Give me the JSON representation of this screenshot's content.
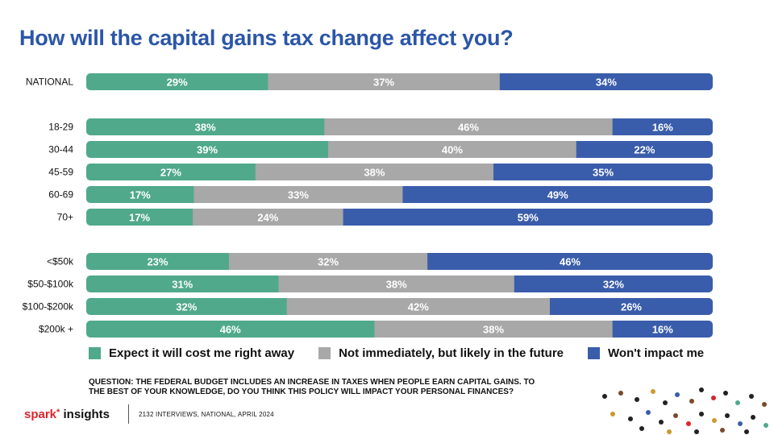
{
  "title": "How will the capital gains tax change affect you?",
  "colors": {
    "cost_now": "#4fa98a",
    "future": "#a8a8a8",
    "no_impact": "#3a5dab"
  },
  "chart_data": {
    "type": "bar",
    "orientation": "horizontal",
    "stacked": true,
    "normalized": true,
    "categories": [
      "NATIONAL",
      "18-29",
      "30-44",
      "45-59",
      "60-69",
      "70+",
      "<$50k",
      "$50-$100k",
      "$100-$200k",
      "$200k +"
    ],
    "groups": [
      [
        "NATIONAL"
      ],
      [
        "18-29",
        "30-44",
        "45-59",
        "60-69",
        "70+"
      ],
      [
        "<$50k",
        "$50-$100k",
        "$100-$200k",
        "$200k +"
      ]
    ],
    "series": [
      {
        "name": "Expect it will cost me right away",
        "values": [
          29,
          38,
          39,
          27,
          17,
          17,
          23,
          31,
          32,
          46
        ]
      },
      {
        "name": "Not immediately, but likely in the future",
        "values": [
          37,
          46,
          40,
          38,
          33,
          24,
          32,
          38,
          42,
          38
        ]
      },
      {
        "name": "Won't impact me",
        "values": [
          34,
          16,
          22,
          35,
          49,
          59,
          46,
          32,
          26,
          16
        ]
      }
    ],
    "unit": "%",
    "grid": false,
    "legend_position": "bottom"
  },
  "legend": {
    "items": [
      "Expect it will cost me right away",
      "Not immediately, but likely in the future",
      "Won't impact me"
    ]
  },
  "question": "QUESTION: THE FEDERAL BUDGET INCLUDES AN INCREASE IN TAXES WHEN PEOPLE EARN CAPITAL GAINS. TO THE BEST OF YOUR KNOWLEDGE, DO YOU THINK THIS POLICY WILL IMPACT YOUR PERSONAL FINANCES?",
  "footer": {
    "logo_spark": "spark",
    "logo_insights": "insights",
    "note": "2132 INTERVIEWS, NATIONAL, APRIL 2024"
  }
}
